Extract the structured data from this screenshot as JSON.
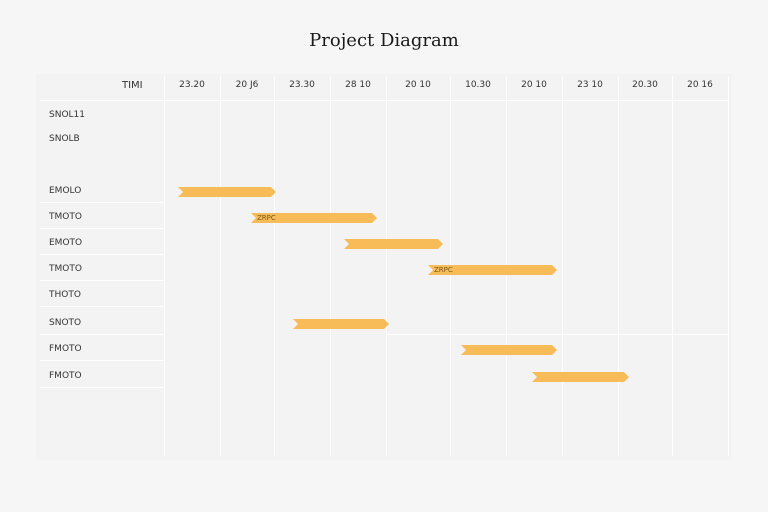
{
  "title": "Project Diagram",
  "corner_label": "TIMI",
  "columns": [
    "23.20",
    "20 J6",
    "23.30",
    "28 10",
    "20 10",
    "10.30",
    "20 10",
    "23 10",
    "20.30",
    "20 16"
  ],
  "rows": [
    {
      "label": "SNOL11"
    },
    {
      "label": "SNOLB"
    },
    {
      "label": "EMOLO"
    },
    {
      "label": "TMOTO"
    },
    {
      "label": "EMOTO"
    },
    {
      "label": "TMOTO"
    },
    {
      "label": "THOTO"
    },
    {
      "label": "SNOTO"
    },
    {
      "label": "FMOTO"
    },
    {
      "label": "FMOTO"
    }
  ],
  "tasks": [
    {
      "row": 2,
      "label": ""
    },
    {
      "row": 3,
      "label": "ZRPC"
    },
    {
      "row": 4,
      "label": ""
    },
    {
      "row": 5,
      "label": "ZRPC"
    },
    {
      "row": 7,
      "label": ""
    },
    {
      "row": 8,
      "label": ""
    },
    {
      "row": 9,
      "label": ""
    }
  ],
  "bar_color": "#f7bb58"
}
